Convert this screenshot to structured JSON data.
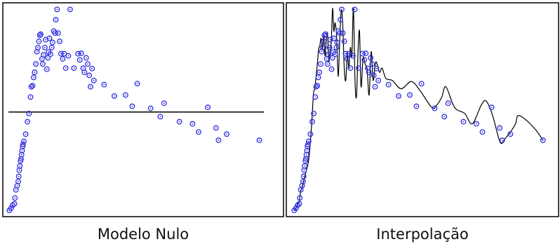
{
  "captions": {
    "left": "Modelo Nulo",
    "right": "Interpolação"
  },
  "colors": {
    "points": "#2f2fe0",
    "line": "#000000",
    "frame": "#000000",
    "background": "#ffffff"
  },
  "chart_data": [
    {
      "type": "scatter",
      "title": "",
      "xlabel": "",
      "ylabel": "",
      "xlim": [
        0,
        1
      ],
      "ylim": [
        0,
        1
      ],
      "grid": false,
      "legend": "none",
      "null_model_line": 0.487,
      "x": [
        0.009,
        0.016,
        0.022,
        0.029,
        0.031,
        0.035,
        0.04,
        0.044,
        0.046,
        0.048,
        0.05,
        0.053,
        0.055,
        0.057,
        0.059,
        0.061,
        0.063,
        0.066,
        0.073,
        0.08,
        0.086,
        0.092,
        0.095,
        0.1,
        0.104,
        0.108,
        0.113,
        0.117,
        0.121,
        0.125,
        0.128,
        0.132,
        0.137,
        0.14,
        0.143,
        0.148,
        0.151,
        0.156,
        0.16,
        0.163,
        0.166,
        0.17,
        0.175,
        0.178,
        0.183,
        0.188,
        0.191,
        0.196,
        0.2,
        0.206,
        0.211,
        0.218,
        0.224,
        0.23,
        0.24,
        0.247,
        0.262,
        0.278,
        0.285,
        0.291,
        0.298,
        0.303,
        0.31,
        0.316,
        0.322,
        0.327,
        0.333,
        0.34,
        0.38,
        0.42,
        0.464,
        0.49,
        0.51,
        0.562,
        0.6,
        0.615,
        0.675,
        0.726,
        0.75,
        0.786,
        0.818,
        0.828,
        0.86,
        0.988
      ],
      "y": [
        0.01,
        0.02,
        0.035,
        0.042,
        0.07,
        0.11,
        0.13,
        0.15,
        0.175,
        0.205,
        0.225,
        0.25,
        0.26,
        0.28,
        0.3,
        0.32,
        0.33,
        0.345,
        0.38,
        0.44,
        0.48,
        0.56,
        0.61,
        0.615,
        0.655,
        0.68,
        0.72,
        0.78,
        0.8,
        0.83,
        0.86,
        0.865,
        0.745,
        0.72,
        0.765,
        0.8,
        0.838,
        0.695,
        0.75,
        0.778,
        0.845,
        0.768,
        0.8,
        0.825,
        0.88,
        0.87,
        0.935,
        0.985,
        0.87,
        0.83,
        0.77,
        0.745,
        0.77,
        0.7,
        0.76,
        0.985,
        0.7,
        0.77,
        0.74,
        0.772,
        0.7,
        0.68,
        0.75,
        0.72,
        0.665,
        0.61,
        0.698,
        0.64,
        0.62,
        0.565,
        0.57,
        0.515,
        0.625,
        0.505,
        0.465,
        0.53,
        0.44,
        0.43,
        0.39,
        0.51,
        0.41,
        0.35,
        0.38,
        0.35
      ]
    },
    {
      "type": "line",
      "title": "",
      "xlabel": "",
      "ylabel": "",
      "xlim": [
        0,
        1
      ],
      "ylim": [
        0,
        1
      ],
      "grid": false,
      "legend": "none",
      "x": [
        0.01,
        0.016,
        0.022,
        0.028,
        0.034,
        0.04,
        0.046,
        0.052,
        0.058,
        0.064,
        0.07,
        0.075,
        0.08,
        0.085,
        0.09,
        0.095,
        0.1,
        0.105,
        0.11,
        0.115,
        0.12,
        0.125,
        0.13,
        0.135,
        0.14,
        0.145,
        0.15,
        0.155,
        0.16,
        0.165,
        0.17,
        0.176,
        0.182,
        0.188,
        0.194,
        0.2,
        0.206,
        0.212,
        0.218,
        0.224,
        0.23,
        0.236,
        0.242,
        0.248,
        0.254,
        0.26,
        0.266,
        0.272,
        0.28,
        0.288,
        0.296,
        0.304,
        0.312,
        0.32,
        0.33,
        0.345,
        0.355,
        0.37,
        0.395,
        0.43,
        0.47,
        0.505,
        0.55,
        0.57,
        0.59,
        0.606,
        0.64,
        0.68,
        0.71,
        0.745,
        0.765,
        0.79,
        0.82,
        0.84,
        0.86,
        0.88,
        0.89,
        0.92,
        0.96,
        0.988
      ],
      "y": [
        0.01,
        0.02,
        0.04,
        0.05,
        0.1,
        0.12,
        0.15,
        0.18,
        0.21,
        0.24,
        0.3,
        0.38,
        0.48,
        0.58,
        0.6,
        0.66,
        0.72,
        0.79,
        0.81,
        0.845,
        0.79,
        0.86,
        0.76,
        0.83,
        0.87,
        0.735,
        0.78,
        0.83,
        0.99,
        0.88,
        0.92,
        0.85,
        0.66,
        0.83,
        0.98,
        0.91,
        0.7,
        0.64,
        0.77,
        0.7,
        0.8,
        0.76,
        0.99,
        0.65,
        0.56,
        0.77,
        0.88,
        0.61,
        0.75,
        0.72,
        0.69,
        0.57,
        0.78,
        0.64,
        0.73,
        0.68,
        0.7,
        0.65,
        0.64,
        0.6,
        0.635,
        0.59,
        0.51,
        0.52,
        0.56,
        0.61,
        0.51,
        0.48,
        0.43,
        0.52,
        0.54,
        0.47,
        0.34,
        0.36,
        0.39,
        0.43,
        0.47,
        0.45,
        0.4,
        0.35
      ]
    }
  ]
}
